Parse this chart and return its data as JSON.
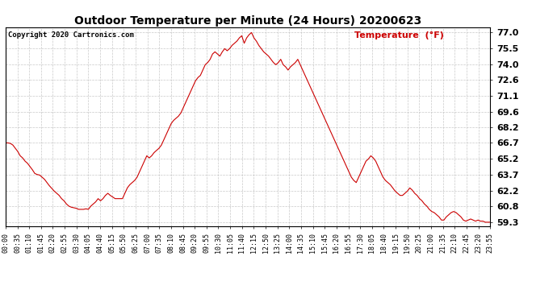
{
  "title": "Outdoor Temperature per Minute (24 Hours) 20200623",
  "copyright_text": "Copyright 2020 Cartronics.com",
  "legend_text": "Temperature  (°F)",
  "line_color": "#cc0000",
  "background_color": "#ffffff",
  "grid_color": "#bbbbbb",
  "yticks": [
    59.3,
    60.8,
    62.2,
    63.7,
    65.2,
    66.7,
    68.2,
    69.6,
    71.1,
    72.6,
    74.0,
    75.5,
    77.0
  ],
  "ylim": [
    58.9,
    77.5
  ],
  "x_tick_labels": [
    "00:00",
    "00:35",
    "01:10",
    "01:45",
    "02:20",
    "02:55",
    "03:30",
    "04:05",
    "04:40",
    "05:15",
    "05:50",
    "06:25",
    "07:00",
    "07:35",
    "08:10",
    "08:45",
    "09:20",
    "09:55",
    "10:30",
    "11:05",
    "11:40",
    "12:15",
    "12:50",
    "13:25",
    "14:00",
    "14:35",
    "15:10",
    "15:45",
    "16:20",
    "16:55",
    "17:30",
    "18:05",
    "18:40",
    "19:15",
    "19:50",
    "20:25",
    "21:00",
    "21:35",
    "22:10",
    "22:45",
    "23:20",
    "23:55"
  ],
  "temp_values": [
    66.7,
    66.7,
    66.65,
    66.5,
    66.2,
    65.9,
    65.5,
    65.3,
    65.0,
    64.8,
    64.5,
    64.2,
    63.85,
    63.75,
    63.7,
    63.5,
    63.3,
    63.0,
    62.7,
    62.45,
    62.2,
    62.0,
    61.8,
    61.5,
    61.3,
    61.0,
    60.8,
    60.7,
    60.65,
    60.6,
    60.5,
    60.5,
    60.5,
    60.55,
    60.5,
    60.8,
    61.0,
    61.2,
    61.5,
    61.3,
    61.5,
    61.8,
    62.0,
    61.8,
    61.65,
    61.5,
    61.5,
    61.5,
    61.5,
    62.0,
    62.5,
    62.8,
    63.0,
    63.2,
    63.5,
    64.0,
    64.5,
    65.0,
    65.5,
    65.3,
    65.5,
    65.8,
    66.0,
    66.2,
    66.5,
    67.0,
    67.5,
    68.0,
    68.5,
    68.8,
    69.0,
    69.2,
    69.5,
    70.0,
    70.5,
    71.0,
    71.5,
    72.0,
    72.5,
    72.8,
    73.0,
    73.5,
    74.0,
    74.2,
    74.5,
    75.0,
    75.2,
    75.0,
    74.8,
    75.2,
    75.5,
    75.3,
    75.5,
    75.8,
    76.0,
    76.2,
    76.5,
    76.7,
    76.0,
    76.5,
    76.8,
    77.0,
    76.5,
    76.2,
    75.8,
    75.5,
    75.2,
    75.0,
    74.8,
    74.5,
    74.2,
    74.0,
    74.2,
    74.5,
    74.0,
    73.8,
    73.5,
    73.8,
    74.0,
    74.2,
    74.5,
    74.0,
    73.5,
    73.0,
    72.5,
    72.0,
    71.5,
    71.0,
    70.5,
    70.0,
    69.5,
    69.0,
    68.5,
    68.0,
    67.5,
    67.0,
    66.5,
    66.0,
    65.5,
    65.0,
    64.5,
    64.0,
    63.5,
    63.2,
    63.0,
    63.5,
    64.0,
    64.5,
    65.0,
    65.2,
    65.5,
    65.3,
    65.0,
    64.5,
    64.0,
    63.5,
    63.2,
    63.0,
    62.8,
    62.5,
    62.2,
    62.0,
    61.8,
    61.8,
    62.0,
    62.2,
    62.5,
    62.3,
    62.0,
    61.8,
    61.5,
    61.3,
    61.0,
    60.8,
    60.5,
    60.3,
    60.2,
    60.0,
    59.8,
    59.5,
    59.5,
    59.8,
    60.0,
    60.2,
    60.3,
    60.2,
    60.0,
    59.8,
    59.5,
    59.4,
    59.5,
    59.6,
    59.5,
    59.4,
    59.5,
    59.4,
    59.4,
    59.3,
    59.3,
    59.3
  ],
  "figsize": [
    6.9,
    3.75
  ],
  "dpi": 100
}
